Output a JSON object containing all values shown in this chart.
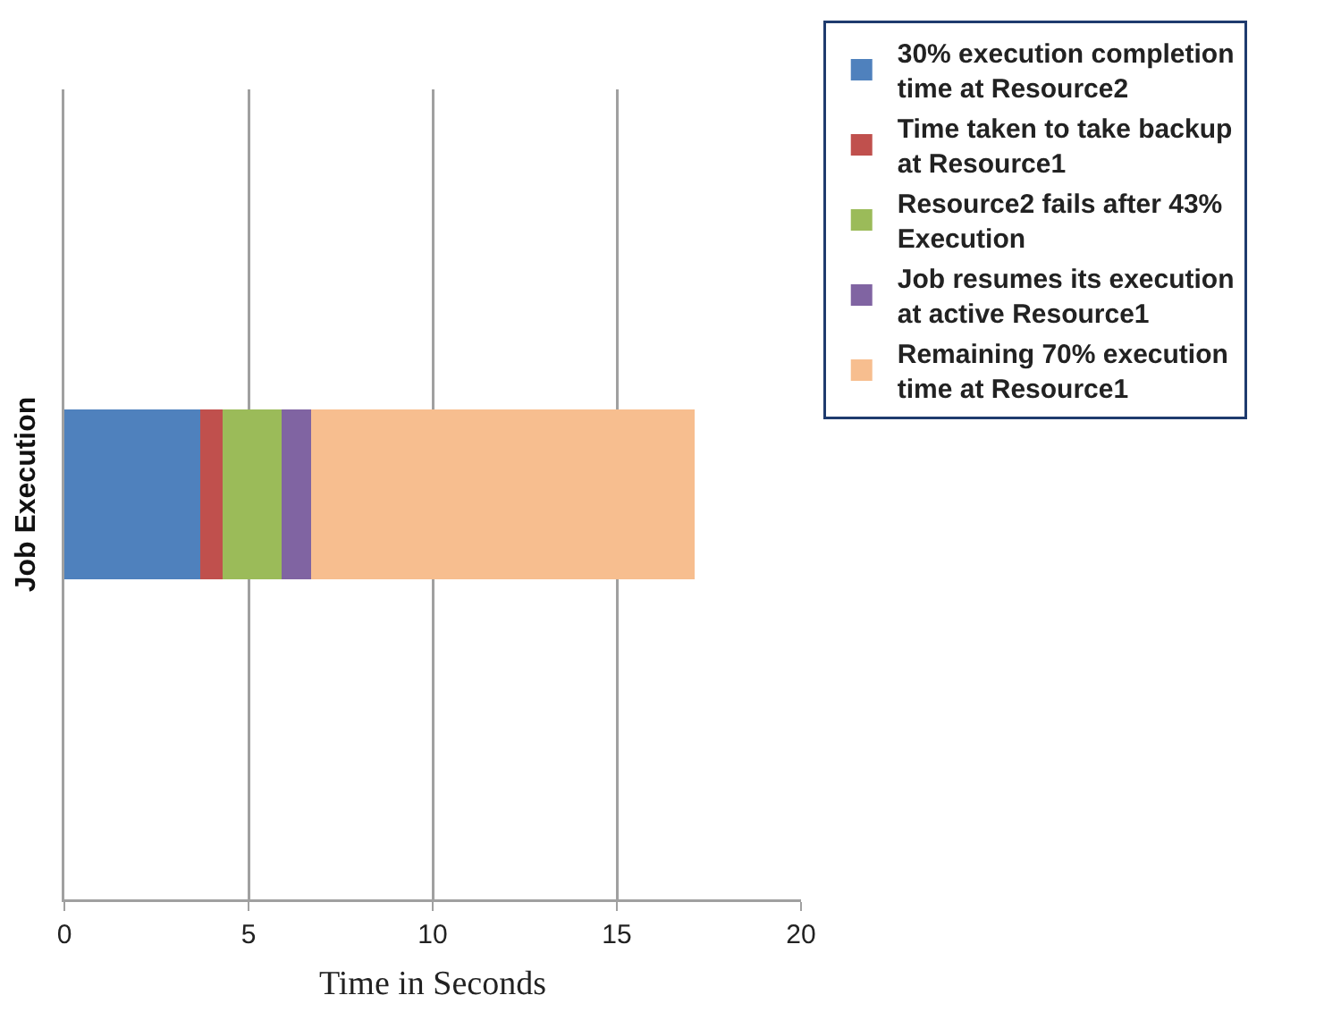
{
  "chart_data": {
    "type": "bar",
    "orientation": "horizontal",
    "stacked": true,
    "xlabel": "Time in Seconds",
    "ylabel": "Job Execution",
    "categories": [
      null
    ],
    "series": [
      {
        "name": "30% execution completion time at Resource2",
        "color": "#4f81bd",
        "values": [
          3.7
        ]
      },
      {
        "name": "Time taken to take backup at Resource1",
        "color": "#c0504d",
        "values": [
          0.6
        ]
      },
      {
        "name": "Resource2 fails after 43% Execution",
        "color": "#9bbb59",
        "values": [
          1.6
        ]
      },
      {
        "name": "Job resumes its execution at active Resource1",
        "color": "#8064a2",
        "values": [
          0.8
        ]
      },
      {
        "name": "Remaining 70% execution time at Resource1",
        "color": "#f7be8f",
        "values": [
          10.4
        ]
      }
    ],
    "xlim": [
      0,
      20
    ],
    "xticks": [
      0,
      5,
      10,
      15,
      20
    ],
    "grid": "x",
    "legend": "right"
  }
}
